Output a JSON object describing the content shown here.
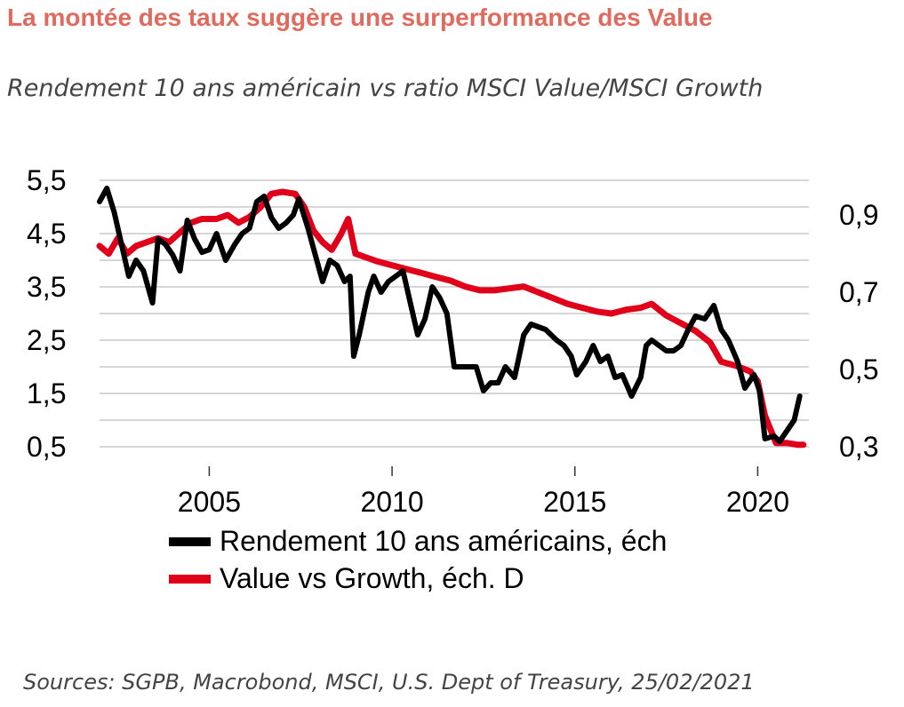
{
  "title": "La montée des taux suggère une surperformance des Value",
  "subtitle": "Rendement 10 ans américain vs ratio MSCI Value/MSCI Growth",
  "source": "Sources: SGPB, Macrobond, MSCI, U.S. Dept of Treasury, 25/02/2021",
  "chart_data": {
    "type": "line",
    "xlim": [
      2002,
      2021.4
    ],
    "x_ticks": [
      "2005",
      "2010",
      "2015",
      "2020"
    ],
    "x_tick_values": [
      2005,
      2010,
      2015,
      2020
    ],
    "y_left": {
      "ticks": [
        "5,5",
        "4,5",
        "3,5",
        "2,5",
        "1,5",
        "0,5"
      ],
      "tick_values": [
        5.5,
        4.5,
        3.5,
        2.5,
        1.5,
        0.5
      ],
      "lim": [
        0.5,
        5.5
      ]
    },
    "y_right": {
      "ticks": [
        "0,9",
        "0,7",
        "0,5",
        "0,3"
      ],
      "tick_values": [
        0.9,
        0.7,
        0.5,
        0.3
      ],
      "lim": [
        0.3,
        0.99
      ]
    },
    "grid": true,
    "legend_position": "bottom",
    "series": [
      {
        "name": "Rendement 10 ans américains, éch",
        "axis": "left",
        "color": "#000000",
        "points": [
          [
            2002.0,
            5.1
          ],
          [
            2002.2,
            5.35
          ],
          [
            2002.4,
            4.9
          ],
          [
            2002.6,
            4.3
          ],
          [
            2002.8,
            3.7
          ],
          [
            2003.0,
            4.0
          ],
          [
            2003.2,
            3.8
          ],
          [
            2003.45,
            3.2
          ],
          [
            2003.6,
            4.4
          ],
          [
            2003.8,
            4.3
          ],
          [
            2004.0,
            4.1
          ],
          [
            2004.2,
            3.8
          ],
          [
            2004.4,
            4.75
          ],
          [
            2004.6,
            4.4
          ],
          [
            2004.8,
            4.15
          ],
          [
            2005.0,
            4.2
          ],
          [
            2005.2,
            4.5
          ],
          [
            2005.45,
            4.0
          ],
          [
            2005.7,
            4.3
          ],
          [
            2005.9,
            4.5
          ],
          [
            2006.1,
            4.6
          ],
          [
            2006.3,
            5.1
          ],
          [
            2006.5,
            5.2
          ],
          [
            2006.7,
            4.8
          ],
          [
            2006.9,
            4.6
          ],
          [
            2007.1,
            4.7
          ],
          [
            2007.3,
            4.85
          ],
          [
            2007.45,
            5.15
          ],
          [
            2007.7,
            4.6
          ],
          [
            2007.9,
            4.1
          ],
          [
            2008.1,
            3.6
          ],
          [
            2008.3,
            4.0
          ],
          [
            2008.5,
            3.9
          ],
          [
            2008.7,
            3.6
          ],
          [
            2008.85,
            3.7
          ],
          [
            2008.95,
            2.2
          ],
          [
            2009.1,
            2.6
          ],
          [
            2009.35,
            3.4
          ],
          [
            2009.5,
            3.7
          ],
          [
            2009.7,
            3.4
          ],
          [
            2009.9,
            3.6
          ],
          [
            2010.1,
            3.7
          ],
          [
            2010.3,
            3.8
          ],
          [
            2010.5,
            3.2
          ],
          [
            2010.7,
            2.6
          ],
          [
            2010.9,
            2.9
          ],
          [
            2011.1,
            3.5
          ],
          [
            2011.3,
            3.3
          ],
          [
            2011.5,
            3.0
          ],
          [
            2011.7,
            2.0
          ],
          [
            2011.9,
            2.0
          ],
          [
            2012.1,
            2.0
          ],
          [
            2012.3,
            2.0
          ],
          [
            2012.5,
            1.55
          ],
          [
            2012.7,
            1.7
          ],
          [
            2012.9,
            1.7
          ],
          [
            2013.1,
            2.0
          ],
          [
            2013.35,
            1.8
          ],
          [
            2013.6,
            2.6
          ],
          [
            2013.8,
            2.8
          ],
          [
            2014.0,
            2.75
          ],
          [
            2014.2,
            2.7
          ],
          [
            2014.5,
            2.5
          ],
          [
            2014.7,
            2.4
          ],
          [
            2014.9,
            2.2
          ],
          [
            2015.05,
            1.85
          ],
          [
            2015.3,
            2.1
          ],
          [
            2015.5,
            2.4
          ],
          [
            2015.7,
            2.1
          ],
          [
            2015.9,
            2.2
          ],
          [
            2016.1,
            1.8
          ],
          [
            2016.3,
            1.85
          ],
          [
            2016.55,
            1.45
          ],
          [
            2016.8,
            1.8
          ],
          [
            2016.95,
            2.4
          ],
          [
            2017.1,
            2.5
          ],
          [
            2017.3,
            2.4
          ],
          [
            2017.5,
            2.3
          ],
          [
            2017.7,
            2.3
          ],
          [
            2017.9,
            2.4
          ],
          [
            2018.1,
            2.7
          ],
          [
            2018.3,
            2.95
          ],
          [
            2018.55,
            2.9
          ],
          [
            2018.8,
            3.15
          ],
          [
            2019.0,
            2.7
          ],
          [
            2019.2,
            2.5
          ],
          [
            2019.45,
            2.1
          ],
          [
            2019.65,
            1.6
          ],
          [
            2019.9,
            1.85
          ],
          [
            2020.05,
            1.55
          ],
          [
            2020.2,
            0.65
          ],
          [
            2020.45,
            0.7
          ],
          [
            2020.6,
            0.6
          ],
          [
            2020.8,
            0.8
          ],
          [
            2021.0,
            1.0
          ],
          [
            2021.15,
            1.45
          ]
        ]
      },
      {
        "name": "Value vs Growth, éch. D",
        "axis": "right",
        "color": "#e0001a",
        "points": [
          [
            2002.0,
            0.82
          ],
          [
            2002.25,
            0.8
          ],
          [
            2002.5,
            0.84
          ],
          [
            2002.75,
            0.8
          ],
          [
            2003.0,
            0.82
          ],
          [
            2003.3,
            0.83
          ],
          [
            2003.6,
            0.84
          ],
          [
            2003.9,
            0.83
          ],
          [
            2004.2,
            0.855
          ],
          [
            2004.5,
            0.88
          ],
          [
            2004.8,
            0.89
          ],
          [
            2005.2,
            0.89
          ],
          [
            2005.5,
            0.9
          ],
          [
            2005.8,
            0.88
          ],
          [
            2006.1,
            0.895
          ],
          [
            2006.4,
            0.92
          ],
          [
            2006.7,
            0.955
          ],
          [
            2007.0,
            0.96
          ],
          [
            2007.35,
            0.955
          ],
          [
            2007.6,
            0.92
          ],
          [
            2007.85,
            0.86
          ],
          [
            2008.1,
            0.83
          ],
          [
            2008.35,
            0.81
          ],
          [
            2008.6,
            0.85
          ],
          [
            2008.8,
            0.89
          ],
          [
            2009.0,
            0.8
          ],
          [
            2009.3,
            0.79
          ],
          [
            2009.6,
            0.78
          ],
          [
            2010.0,
            0.77
          ],
          [
            2010.4,
            0.76
          ],
          [
            2010.8,
            0.75
          ],
          [
            2011.2,
            0.74
          ],
          [
            2011.6,
            0.73
          ],
          [
            2012.0,
            0.715
          ],
          [
            2012.4,
            0.705
          ],
          [
            2012.8,
            0.705
          ],
          [
            2013.2,
            0.71
          ],
          [
            2013.6,
            0.715
          ],
          [
            2014.0,
            0.7
          ],
          [
            2014.4,
            0.685
          ],
          [
            2014.8,
            0.67
          ],
          [
            2015.2,
            0.66
          ],
          [
            2015.6,
            0.65
          ],
          [
            2016.0,
            0.645
          ],
          [
            2016.4,
            0.655
          ],
          [
            2016.8,
            0.66
          ],
          [
            2017.1,
            0.67
          ],
          [
            2017.5,
            0.64
          ],
          [
            2017.9,
            0.62
          ],
          [
            2018.3,
            0.6
          ],
          [
            2018.7,
            0.57
          ],
          [
            2019.0,
            0.52
          ],
          [
            2019.4,
            0.51
          ],
          [
            2019.8,
            0.495
          ],
          [
            2020.0,
            0.47
          ],
          [
            2020.2,
            0.38
          ],
          [
            2020.5,
            0.31
          ],
          [
            2020.8,
            0.31
          ],
          [
            2021.1,
            0.305
          ],
          [
            2021.25,
            0.305
          ]
        ]
      }
    ]
  }
}
